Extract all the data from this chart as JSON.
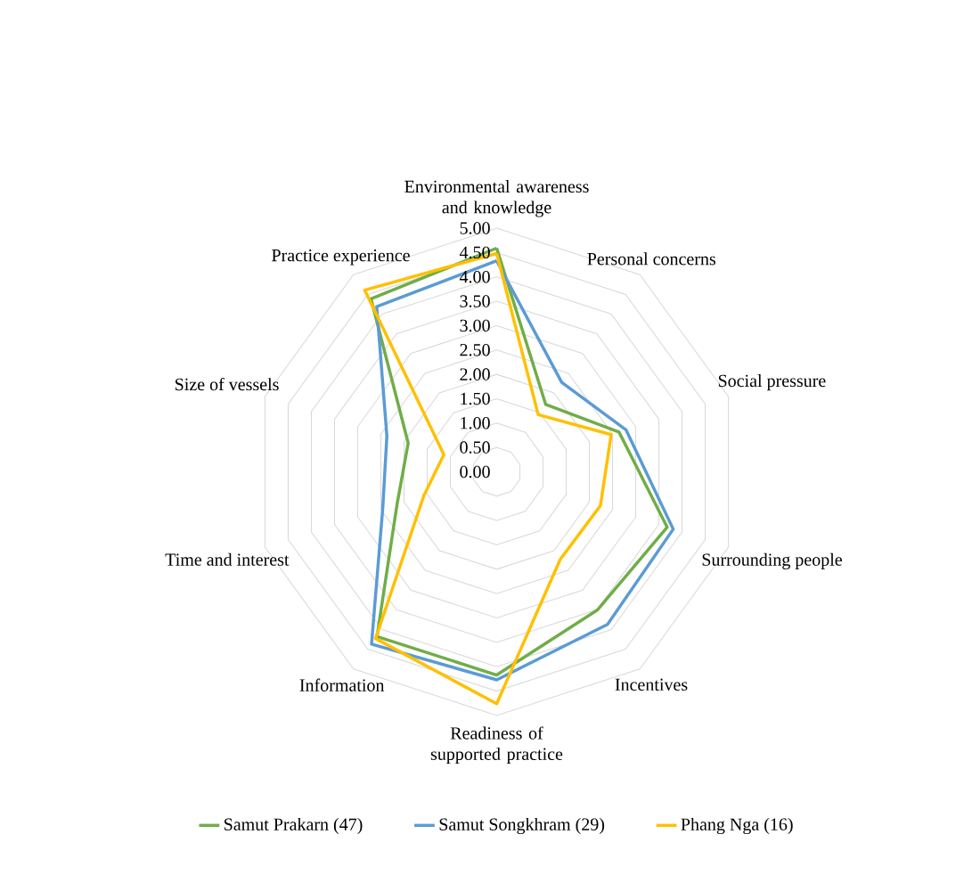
{
  "chart_data": {
    "type": "radar",
    "categories": [
      "Environmental awareness and knowledge",
      "Personal concerns",
      "Social pressure",
      "Surrounding people",
      "Incentives",
      "Readiness of supported practice",
      "Information",
      "Time and interest",
      "Size of vessels",
      "Practice experience"
    ],
    "series": [
      {
        "name": "Samut Prakarn (47)",
        "color": "#70ad47",
        "values": [
          4.59,
          1.71,
          2.64,
          3.68,
          3.51,
          4.17,
          4.18,
          2.15,
          1.91,
          4.39
        ]
      },
      {
        "name": "Samut Songkhram (29)",
        "color": "#5b9bd5",
        "values": [
          4.33,
          2.27,
          2.79,
          3.81,
          3.87,
          4.27,
          4.37,
          2.46,
          2.37,
          4.19
        ]
      },
      {
        "name": "Phang Nga (16)",
        "color": "#ffc000",
        "values": [
          4.48,
          1.45,
          2.47,
          2.24,
          2.22,
          4.76,
          4.23,
          1.57,
          1.14,
          4.61
        ]
      }
    ],
    "ylim": [
      0,
      5
    ],
    "yticks": [
      {
        "value": 0,
        "label": "0.00"
      },
      {
        "value": 0.5,
        "label": "0.50"
      },
      {
        "value": 1,
        "label": "1.00"
      },
      {
        "value": 1.5,
        "label": "1.50"
      },
      {
        "value": 2,
        "label": "2.00"
      },
      {
        "value": 2.5,
        "label": "2.50"
      },
      {
        "value": 3,
        "label": "3.00"
      },
      {
        "value": 3.5,
        "label": "3.50"
      },
      {
        "value": 4,
        "label": "4.00"
      },
      {
        "value": 4.5,
        "label": "4.50"
      },
      {
        "value": 5,
        "label": "5.00"
      }
    ],
    "grid": true,
    "legend": "bottom",
    "marker": "none",
    "line_style": "solid"
  }
}
